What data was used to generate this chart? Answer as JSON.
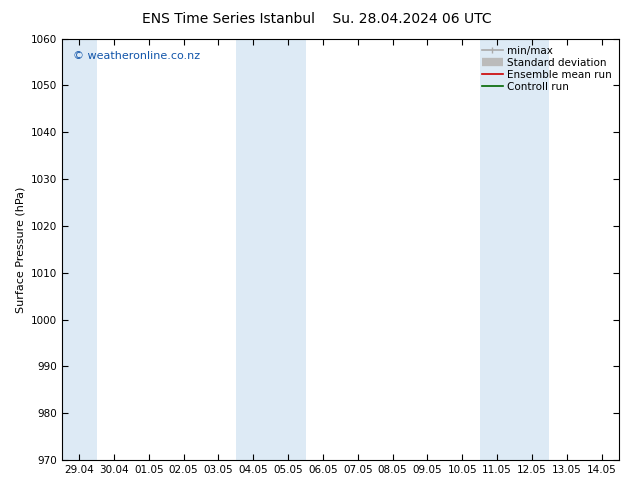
{
  "title_left": "ENS Time Series Istanbul",
  "title_right": "Su. 28.04.2024 06 UTC",
  "ylabel": "Surface Pressure (hPa)",
  "ylim": [
    970,
    1060
  ],
  "yticks": [
    970,
    980,
    990,
    1000,
    1010,
    1020,
    1030,
    1040,
    1050,
    1060
  ],
  "x_labels": [
    "29.04",
    "30.04",
    "01.05",
    "02.05",
    "03.05",
    "04.05",
    "05.05",
    "06.05",
    "07.05",
    "08.05",
    "09.05",
    "10.05",
    "11.05",
    "12.05",
    "13.05",
    "14.05"
  ],
  "num_days": 16,
  "band_color": "#ddeaf5",
  "background_color": "#ffffff",
  "copyright_text": "© weatheronline.co.nz",
  "band_indices": [
    0,
    5,
    6,
    12,
    13
  ],
  "legend_items": [
    {
      "label": "min/max",
      "color": "#aaaaaa",
      "lw": 1.2
    },
    {
      "label": "Standard deviation",
      "color": "#bbbbbb",
      "lw": 6
    },
    {
      "label": "Ensemble mean run",
      "color": "#cc0000",
      "lw": 1.2
    },
    {
      "label": "Controll run",
      "color": "#006600",
      "lw": 1.2
    }
  ],
  "title_fontsize": 10,
  "tick_fontsize": 7.5,
  "ylabel_fontsize": 8,
  "copyright_fontsize": 8,
  "legend_fontsize": 7.5
}
